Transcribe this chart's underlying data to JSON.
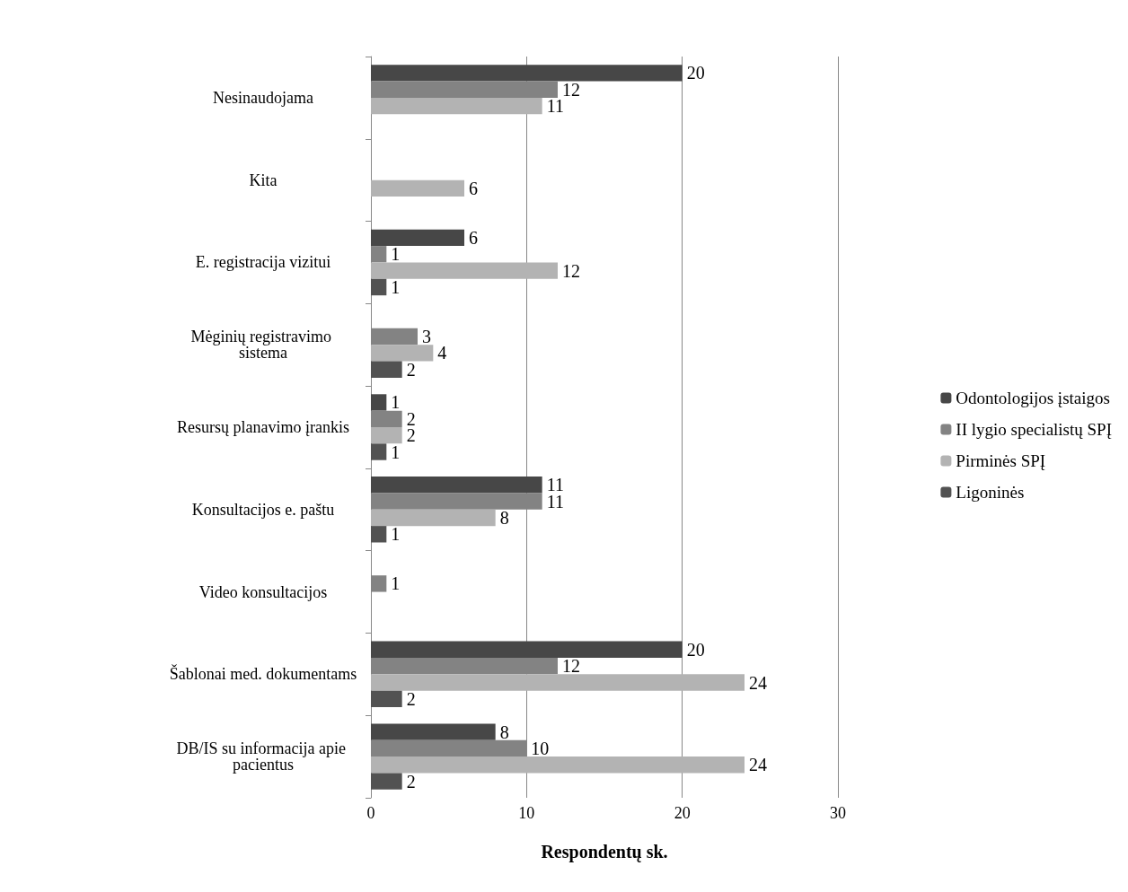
{
  "chart_data": {
    "type": "bar",
    "orientation": "horizontal",
    "xlabel": "Respondentų sk.",
    "categories": [
      "Nesinaudojama",
      "Kita",
      "E. registracija vizitui",
      "Mėginių registravimo sistema",
      "Resursų planavimo įrankis",
      "Konsultacijos e. paštu",
      "Video konsultacijos",
      "Šablonai med. dokumentams",
      "DB/IS su informacija apie pacientus"
    ],
    "series": [
      {
        "name": "Odontologijos įstaigos",
        "color": "#474747",
        "values": [
          20,
          null,
          6,
          null,
          1,
          11,
          null,
          20,
          8
        ]
      },
      {
        "name": "II lygio specialistų SPĮ",
        "color": "#838383",
        "values": [
          12,
          null,
          1,
          3,
          2,
          11,
          1,
          12,
          10
        ]
      },
      {
        "name": "Pirminės SPĮ",
        "color": "#b3b3b3",
        "values": [
          11,
          6,
          12,
          4,
          2,
          8,
          null,
          24,
          24
        ]
      },
      {
        "name": "Ligoninės",
        "color": "#525252",
        "values": [
          null,
          null,
          1,
          2,
          1,
          1,
          null,
          2,
          2
        ]
      }
    ],
    "xlim": [
      0,
      30
    ],
    "xticks": [
      0,
      10,
      20,
      30
    ],
    "grid": "x",
    "legend": "right",
    "data_labels": true
  }
}
